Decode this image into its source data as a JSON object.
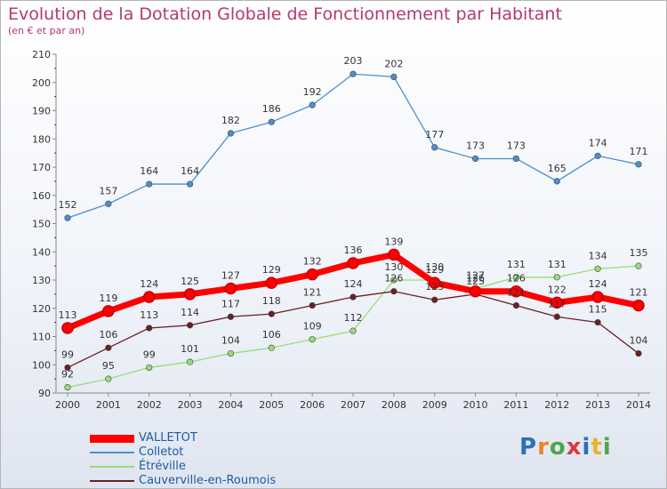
{
  "title": "Evolution de la Dotation Globale de Fonctionnement par Habitant",
  "subtitle": "(en € et par an)",
  "logo_text": "Proxiti",
  "chart_data": {
    "type": "line",
    "categories": [
      "2000",
      "2001",
      "2002",
      "2003",
      "2004",
      "2005",
      "2006",
      "2007",
      "2008",
      "2009",
      "2010",
      "2011",
      "2012",
      "2013",
      "2014"
    ],
    "ylim": [
      90,
      210
    ],
    "yticks": [
      90,
      100,
      110,
      120,
      130,
      140,
      150,
      160,
      170,
      180,
      190,
      200,
      210
    ],
    "grid": false,
    "legend_position": "bottom-left",
    "series": [
      {
        "name": "Colletot",
        "color": "#4d8fcc",
        "values": [
          152,
          157,
          164,
          164,
          182,
          186,
          192,
          203,
          202,
          177,
          173,
          173,
          165,
          174,
          171
        ]
      },
      {
        "name": "Étréville",
        "color": "#99dd77",
        "values": [
          92,
          95,
          99,
          101,
          104,
          106,
          109,
          112,
          130,
          130,
          127,
          131,
          131,
          134,
          135
        ]
      },
      {
        "name": "Cauverville-en-Roumois",
        "color": "#6b1f24",
        "values": [
          99,
          106,
          113,
          114,
          117,
          118,
          121,
          124,
          126,
          123,
          125,
          121,
          117,
          115,
          104
        ]
      },
      {
        "name": "VALLETOT",
        "color": "#ff0000",
        "values": [
          113,
          119,
          124,
          125,
          127,
          129,
          132,
          136,
          139,
          129,
          126,
          126,
          122,
          124,
          121
        ]
      }
    ],
    "legend_order": [
      "VALLETOT",
      "Colletot",
      "Étréville",
      "Cauverville-en-Roumois"
    ]
  }
}
